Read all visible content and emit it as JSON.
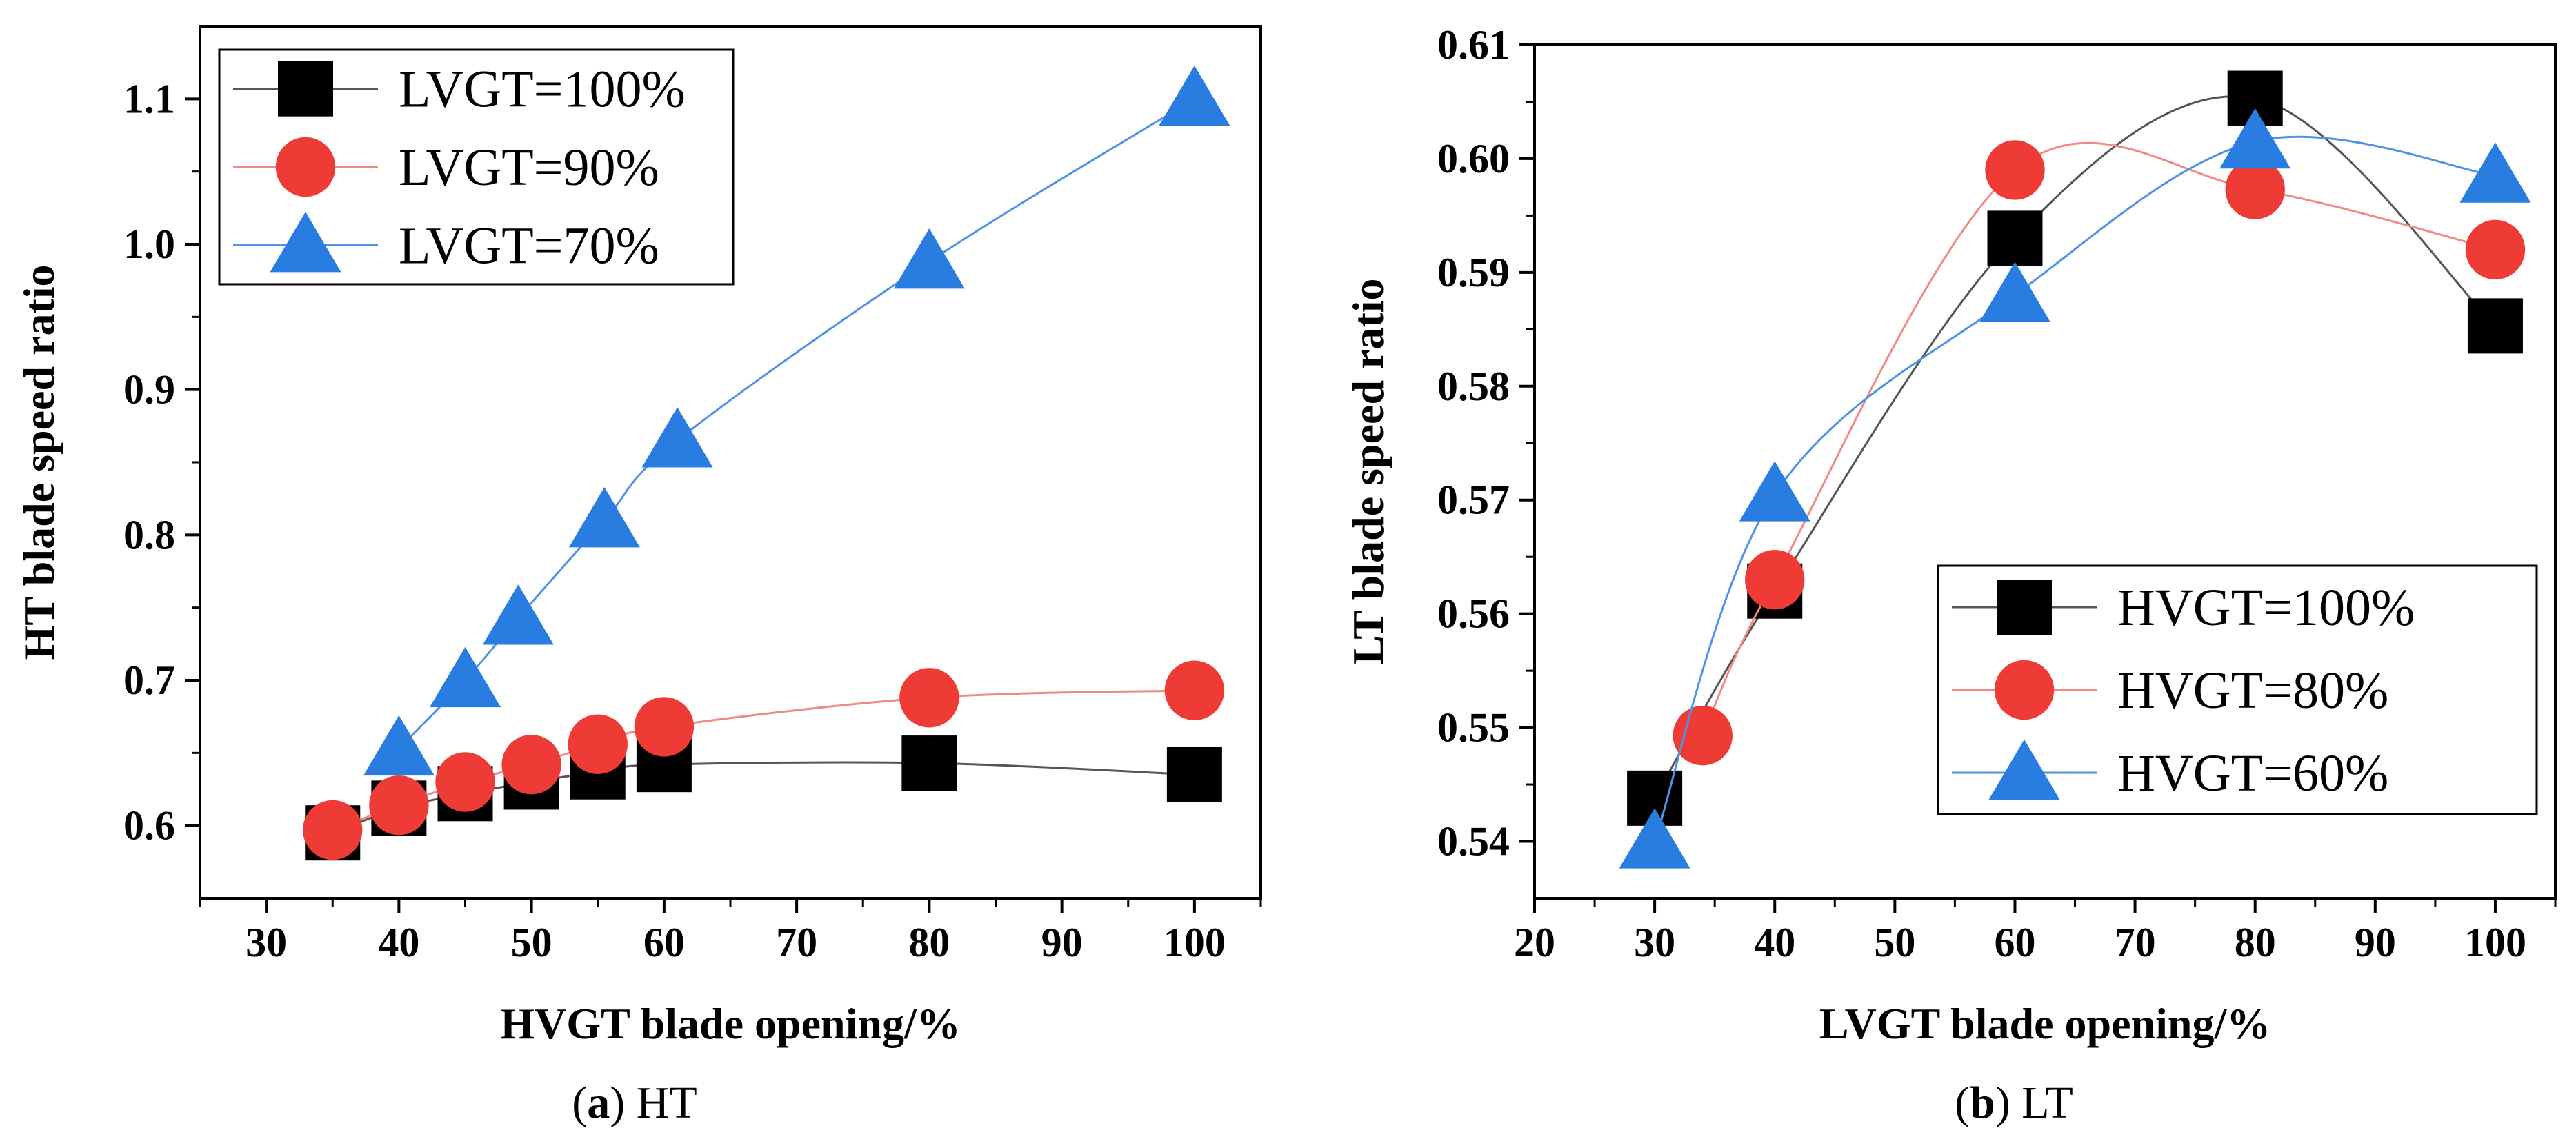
{
  "colors": {
    "series_black": "#000000",
    "series_red": "#ef3b36",
    "series_blue": "#2a7de0",
    "line_black": "#555555",
    "line_red": "#f08a85",
    "line_blue": "#4f93e6"
  },
  "chart_data": [
    {
      "id": "a",
      "type": "scatter",
      "xlabel": "HVGT blade opening/%",
      "ylabel": "HT blade speed ratio",
      "xlim": [
        25,
        105
      ],
      "ylim": [
        0.55,
        1.15
      ],
      "xticks": [
        30,
        40,
        50,
        60,
        70,
        80,
        90,
        100
      ],
      "yticks": [
        0.6,
        0.7,
        0.8,
        0.9,
        1.0,
        1.1
      ],
      "tick_labels_y": [
        "0.6",
        "0.7",
        "0.8",
        "0.9",
        "1.0",
        "1.1"
      ],
      "tick_labels_x": [
        "30",
        "40",
        "50",
        "60",
        "70",
        "80",
        "90",
        "100"
      ],
      "legend_position": "top-left",
      "caption_letter": "a",
      "caption_text": "HT",
      "series": [
        {
          "name": "LVGT=100%",
          "marker": "square",
          "color": "#000000",
          "line_color": "#555555",
          "x": [
            35,
            40,
            45,
            50,
            55,
            60,
            80,
            100
          ],
          "y": [
            0.595,
            0.612,
            0.622,
            0.63,
            0.637,
            0.642,
            0.643,
            0.635
          ]
        },
        {
          "name": "LVGT=90%",
          "marker": "circle",
          "color": "#ef3b36",
          "line_color": "#f08a85",
          "x": [
            35,
            40,
            45,
            50,
            55,
            60,
            80,
            100
          ],
          "y": [
            0.597,
            0.614,
            0.63,
            0.642,
            0.656,
            0.668,
            0.688,
            0.693
          ]
        },
        {
          "name": "LVGT=70%",
          "marker": "triangle",
          "color": "#2a7de0",
          "line_color": "#4f93e6",
          "x": [
            40,
            45,
            49,
            55.5,
            61,
            80,
            100
          ],
          "y": [
            0.653,
            0.7,
            0.743,
            0.81,
            0.865,
            0.988,
            1.1
          ]
        }
      ]
    },
    {
      "id": "b",
      "type": "scatter",
      "xlabel": "LVGT blade opening/%",
      "ylabel": "LT blade speed ratio",
      "xlim": [
        20,
        105
      ],
      "ylim": [
        0.535,
        0.61
      ],
      "xticks": [
        20,
        30,
        40,
        50,
        60,
        70,
        80,
        90,
        100
      ],
      "yticks": [
        0.54,
        0.55,
        0.56,
        0.57,
        0.58,
        0.59,
        0.6,
        0.61
      ],
      "tick_labels_y": [
        "0.54",
        "0.55",
        "0.56",
        "0.57",
        "0.58",
        "0.59",
        "0.60",
        "0.61"
      ],
      "tick_labels_x": [
        "20",
        "30",
        "40",
        "50",
        "60",
        "70",
        "80",
        "90",
        "100"
      ],
      "legend_position": "bottom-right",
      "caption_letter": "b",
      "caption_text": "LT",
      "series": [
        {
          "name": "HVGT=100%",
          "marker": "square",
          "color": "#000000",
          "line_color": "#555555",
          "x": [
            30,
            40,
            60,
            80,
            100
          ],
          "y": [
            0.5438,
            0.562,
            0.593,
            0.6053,
            0.5853
          ]
        },
        {
          "name": "HVGT=80%",
          "marker": "circle",
          "color": "#ef3b36",
          "line_color": "#f08a85",
          "x": [
            34,
            40,
            60,
            80,
            100
          ],
          "y": [
            0.5493,
            0.563,
            0.599,
            0.5973,
            0.592
          ]
        },
        {
          "name": "HVGT=60%",
          "marker": "triangle",
          "color": "#2a7de0",
          "line_color": "#4f93e6",
          "x": [
            30,
            40,
            60,
            80,
            100
          ],
          "y": [
            0.54,
            0.5705,
            0.588,
            0.6015,
            0.5985
          ]
        }
      ]
    }
  ]
}
